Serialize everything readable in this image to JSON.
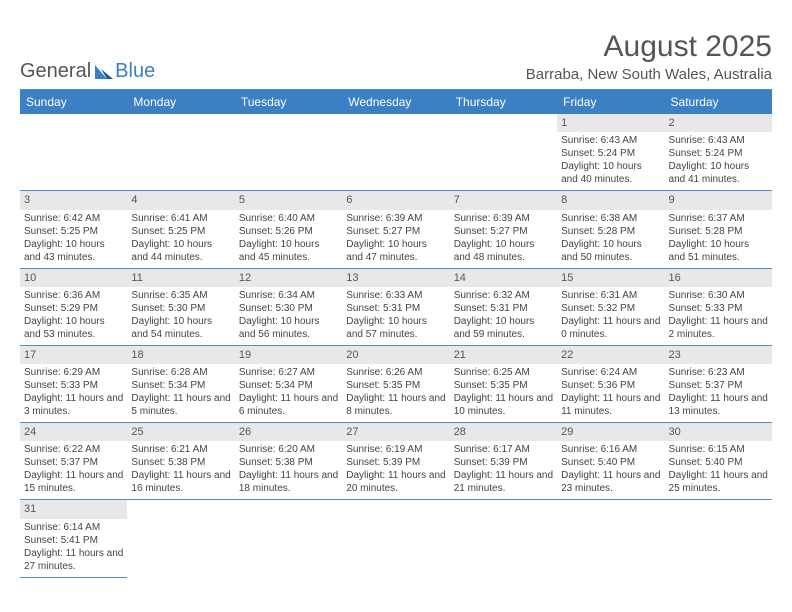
{
  "logo": {
    "text_general": "General",
    "text_blue": "Blue"
  },
  "header": {
    "month": "August 2025",
    "location": "Barraba, New South Wales, Australia"
  },
  "colors": {
    "header_bg": "#3b7fc4",
    "header_text": "#ffffff",
    "grid_border": "#4a8fcf",
    "daynum_bg": "#e8e8e8",
    "text": "#444444",
    "background": "#ffffff"
  },
  "weekdays": [
    "Sunday",
    "Monday",
    "Tuesday",
    "Wednesday",
    "Thursday",
    "Friday",
    "Saturday"
  ],
  "days": [
    {
      "n": "",
      "sunrise": "",
      "sunset": "",
      "daylight": "",
      "empty": true
    },
    {
      "n": "",
      "sunrise": "",
      "sunset": "",
      "daylight": "",
      "empty": true
    },
    {
      "n": "",
      "sunrise": "",
      "sunset": "",
      "daylight": "",
      "empty": true
    },
    {
      "n": "",
      "sunrise": "",
      "sunset": "",
      "daylight": "",
      "empty": true
    },
    {
      "n": "",
      "sunrise": "",
      "sunset": "",
      "daylight": "",
      "empty": true
    },
    {
      "n": "1",
      "sunrise": "Sunrise: 6:43 AM",
      "sunset": "Sunset: 5:24 PM",
      "daylight": "Daylight: 10 hours and 40 minutes."
    },
    {
      "n": "2",
      "sunrise": "Sunrise: 6:43 AM",
      "sunset": "Sunset: 5:24 PM",
      "daylight": "Daylight: 10 hours and 41 minutes."
    },
    {
      "n": "3",
      "sunrise": "Sunrise: 6:42 AM",
      "sunset": "Sunset: 5:25 PM",
      "daylight": "Daylight: 10 hours and 43 minutes."
    },
    {
      "n": "4",
      "sunrise": "Sunrise: 6:41 AM",
      "sunset": "Sunset: 5:25 PM",
      "daylight": "Daylight: 10 hours and 44 minutes."
    },
    {
      "n": "5",
      "sunrise": "Sunrise: 6:40 AM",
      "sunset": "Sunset: 5:26 PM",
      "daylight": "Daylight: 10 hours and 45 minutes."
    },
    {
      "n": "6",
      "sunrise": "Sunrise: 6:39 AM",
      "sunset": "Sunset: 5:27 PM",
      "daylight": "Daylight: 10 hours and 47 minutes."
    },
    {
      "n": "7",
      "sunrise": "Sunrise: 6:39 AM",
      "sunset": "Sunset: 5:27 PM",
      "daylight": "Daylight: 10 hours and 48 minutes."
    },
    {
      "n": "8",
      "sunrise": "Sunrise: 6:38 AM",
      "sunset": "Sunset: 5:28 PM",
      "daylight": "Daylight: 10 hours and 50 minutes."
    },
    {
      "n": "9",
      "sunrise": "Sunrise: 6:37 AM",
      "sunset": "Sunset: 5:28 PM",
      "daylight": "Daylight: 10 hours and 51 minutes."
    },
    {
      "n": "10",
      "sunrise": "Sunrise: 6:36 AM",
      "sunset": "Sunset: 5:29 PM",
      "daylight": "Daylight: 10 hours and 53 minutes."
    },
    {
      "n": "11",
      "sunrise": "Sunrise: 6:35 AM",
      "sunset": "Sunset: 5:30 PM",
      "daylight": "Daylight: 10 hours and 54 minutes."
    },
    {
      "n": "12",
      "sunrise": "Sunrise: 6:34 AM",
      "sunset": "Sunset: 5:30 PM",
      "daylight": "Daylight: 10 hours and 56 minutes."
    },
    {
      "n": "13",
      "sunrise": "Sunrise: 6:33 AM",
      "sunset": "Sunset: 5:31 PM",
      "daylight": "Daylight: 10 hours and 57 minutes."
    },
    {
      "n": "14",
      "sunrise": "Sunrise: 6:32 AM",
      "sunset": "Sunset: 5:31 PM",
      "daylight": "Daylight: 10 hours and 59 minutes."
    },
    {
      "n": "15",
      "sunrise": "Sunrise: 6:31 AM",
      "sunset": "Sunset: 5:32 PM",
      "daylight": "Daylight: 11 hours and 0 minutes."
    },
    {
      "n": "16",
      "sunrise": "Sunrise: 6:30 AM",
      "sunset": "Sunset: 5:33 PM",
      "daylight": "Daylight: 11 hours and 2 minutes."
    },
    {
      "n": "17",
      "sunrise": "Sunrise: 6:29 AM",
      "sunset": "Sunset: 5:33 PM",
      "daylight": "Daylight: 11 hours and 3 minutes."
    },
    {
      "n": "18",
      "sunrise": "Sunrise: 6:28 AM",
      "sunset": "Sunset: 5:34 PM",
      "daylight": "Daylight: 11 hours and 5 minutes."
    },
    {
      "n": "19",
      "sunrise": "Sunrise: 6:27 AM",
      "sunset": "Sunset: 5:34 PM",
      "daylight": "Daylight: 11 hours and 6 minutes."
    },
    {
      "n": "20",
      "sunrise": "Sunrise: 6:26 AM",
      "sunset": "Sunset: 5:35 PM",
      "daylight": "Daylight: 11 hours and 8 minutes."
    },
    {
      "n": "21",
      "sunrise": "Sunrise: 6:25 AM",
      "sunset": "Sunset: 5:35 PM",
      "daylight": "Daylight: 11 hours and 10 minutes."
    },
    {
      "n": "22",
      "sunrise": "Sunrise: 6:24 AM",
      "sunset": "Sunset: 5:36 PM",
      "daylight": "Daylight: 11 hours and 11 minutes."
    },
    {
      "n": "23",
      "sunrise": "Sunrise: 6:23 AM",
      "sunset": "Sunset: 5:37 PM",
      "daylight": "Daylight: 11 hours and 13 minutes."
    },
    {
      "n": "24",
      "sunrise": "Sunrise: 6:22 AM",
      "sunset": "Sunset: 5:37 PM",
      "daylight": "Daylight: 11 hours and 15 minutes."
    },
    {
      "n": "25",
      "sunrise": "Sunrise: 6:21 AM",
      "sunset": "Sunset: 5:38 PM",
      "daylight": "Daylight: 11 hours and 16 minutes."
    },
    {
      "n": "26",
      "sunrise": "Sunrise: 6:20 AM",
      "sunset": "Sunset: 5:38 PM",
      "daylight": "Daylight: 11 hours and 18 minutes."
    },
    {
      "n": "27",
      "sunrise": "Sunrise: 6:19 AM",
      "sunset": "Sunset: 5:39 PM",
      "daylight": "Daylight: 11 hours and 20 minutes."
    },
    {
      "n": "28",
      "sunrise": "Sunrise: 6:17 AM",
      "sunset": "Sunset: 5:39 PM",
      "daylight": "Daylight: 11 hours and 21 minutes."
    },
    {
      "n": "29",
      "sunrise": "Sunrise: 6:16 AM",
      "sunset": "Sunset: 5:40 PM",
      "daylight": "Daylight: 11 hours and 23 minutes."
    },
    {
      "n": "30",
      "sunrise": "Sunrise: 6:15 AM",
      "sunset": "Sunset: 5:40 PM",
      "daylight": "Daylight: 11 hours and 25 minutes."
    },
    {
      "n": "31",
      "sunrise": "Sunrise: 6:14 AM",
      "sunset": "Sunset: 5:41 PM",
      "daylight": "Daylight: 11 hours and 27 minutes."
    }
  ]
}
